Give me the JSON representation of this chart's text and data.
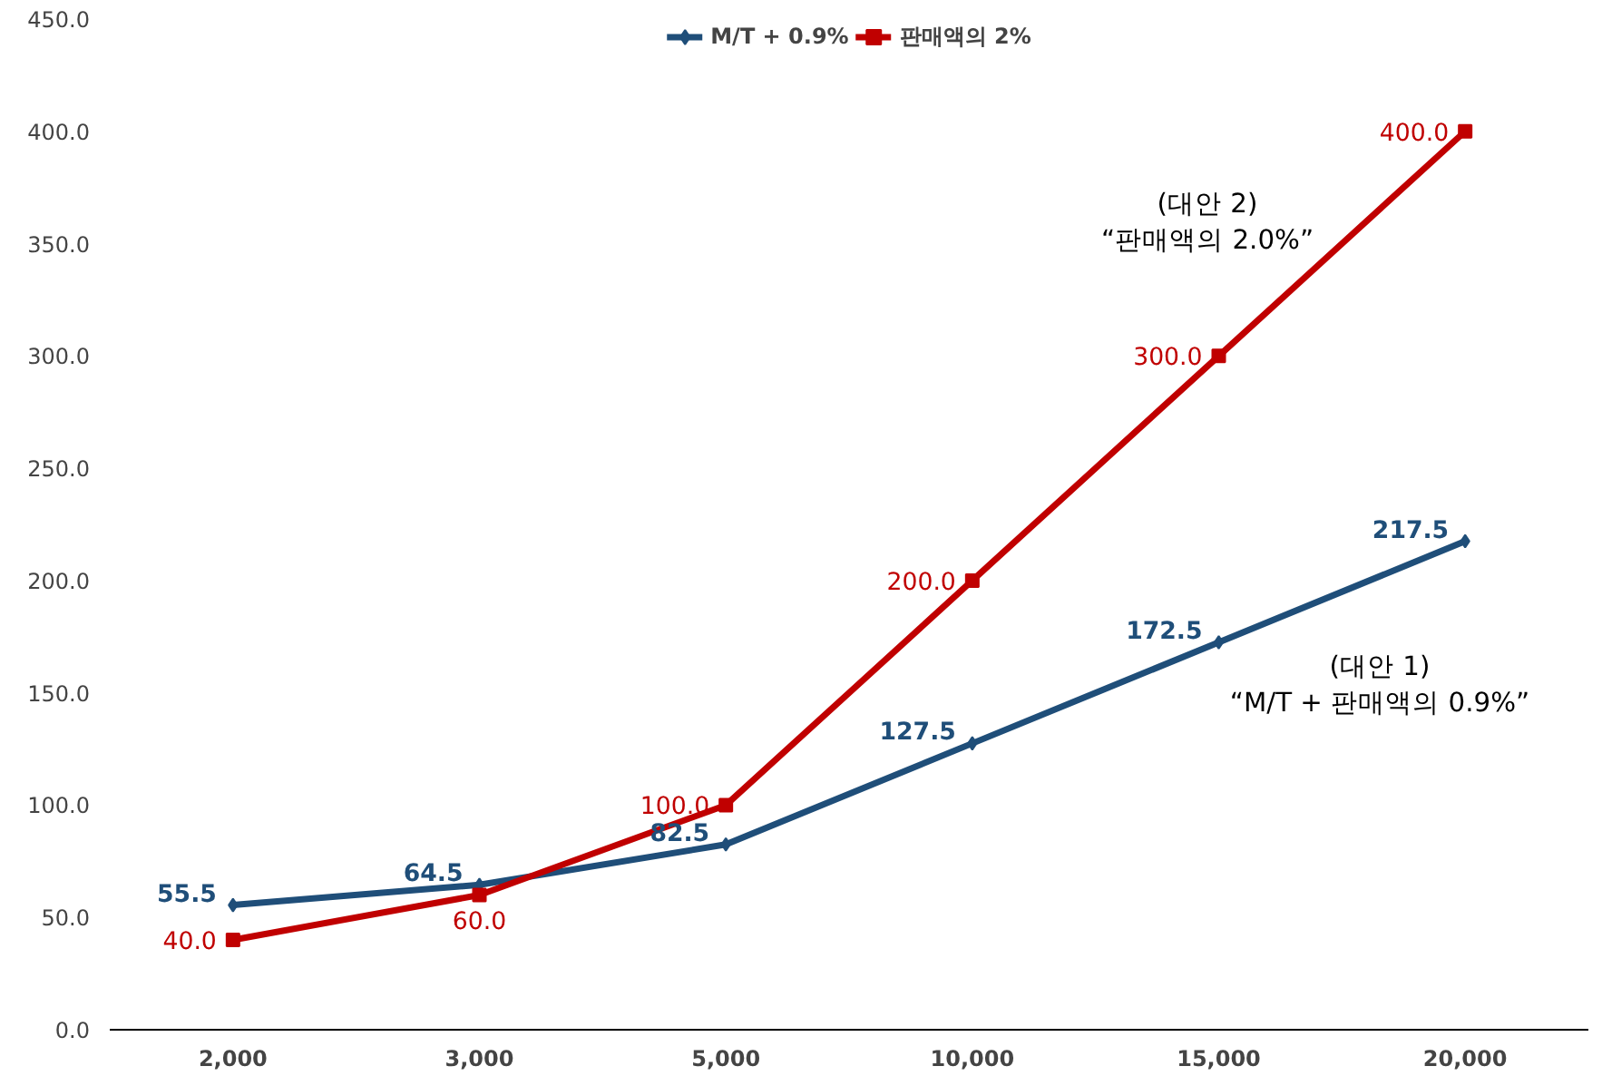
{
  "chart_data": {
    "type": "line",
    "categories": [
      "2,000",
      "3,000",
      "5,000",
      "10,000",
      "15,000",
      "20,000"
    ],
    "series": [
      {
        "name": "M/T + 0.9%",
        "color": "#1f4e79",
        "marker": "diamond",
        "values": [
          55.5,
          64.5,
          82.5,
          127.5,
          172.5,
          217.5
        ],
        "value_labels": [
          "55.5",
          "64.5",
          "82.5",
          "127.5",
          "172.5",
          "217.5"
        ]
      },
      {
        "name": "판매액의 2%",
        "color": "#c00000",
        "marker": "square",
        "values": [
          40.0,
          60.0,
          100.0,
          200.0,
          300.0,
          400.0
        ],
        "value_labels": [
          "40.0",
          "60.0",
          "100.0",
          "200.0",
          "300.0",
          "400.0"
        ]
      }
    ],
    "ylim": [
      0,
      450
    ],
    "yticks": [
      {
        "value": 0,
        "label": "0.0"
      },
      {
        "value": 50,
        "label": "50.0"
      },
      {
        "value": 100,
        "label": "100.0"
      },
      {
        "value": 150,
        "label": "150.0"
      },
      {
        "value": 200,
        "label": "200.0"
      },
      {
        "value": 250,
        "label": "250.0"
      },
      {
        "value": 300,
        "label": "300.0"
      },
      {
        "value": 350,
        "label": "350.0"
      },
      {
        "value": 400,
        "label": "400.0"
      },
      {
        "value": 450,
        "label": "450.0"
      }
    ],
    "annotations": [
      "(대안 2)\n“판매액의 2.0%”",
      "(대안 1)\n“M/T + 판매액의 0.9%”"
    ],
    "grid": false,
    "legend": "top",
    "line_style": "solid"
  }
}
